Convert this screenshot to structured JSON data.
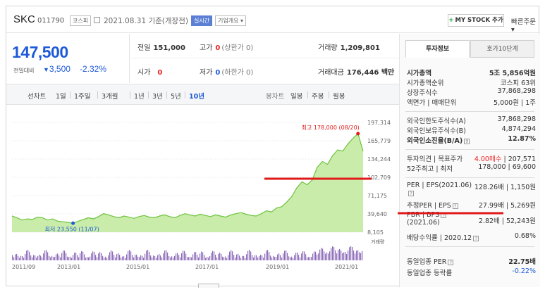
{
  "header": {
    "name": "SKC",
    "code": "011790",
    "market_badge": "코스피",
    "date_text": "2021.08.31 기준(개장전)",
    "realtime_badge": "실시간",
    "company_overview": "기업개요",
    "mystock_label": "MY STOCK 추가",
    "quick_order": "빠른주문"
  },
  "quote": {
    "price": "147,500",
    "change_label": "전일대비",
    "change": "3,500",
    "change_pct": "-2.32%",
    "prev_close_label": "전일",
    "prev_close": "151,000",
    "high_label": "고가",
    "high": "0",
    "high_note": "(상한가 0)",
    "volume_label": "거래량",
    "volume": "1,209,801",
    "open_label": "시가",
    "open": "0",
    "low_label": "저가",
    "low": "0",
    "low_note": "(하한가 0)",
    "amount_label": "거래대금",
    "amount": "176,446 백만"
  },
  "toolbar": {
    "periods": [
      "선차트",
      "1일",
      "1주일",
      "3개월",
      "1년",
      "3년",
      "5년",
      "10년"
    ],
    "active": "10년",
    "candle": [
      "봉차트",
      "일봉",
      "주봉",
      "월봉"
    ]
  },
  "chart_data": {
    "type": "area",
    "x_ticks": [
      "2011/09",
      "2013/01",
      "2015/01",
      "2017/01",
      "2019/01",
      "2021/01"
    ],
    "y_ticks": [
      "197,314",
      "165,779",
      "134,244",
      "102,709",
      "71,175",
      "39,640",
      "8,105"
    ],
    "ylim": [
      8105,
      197314
    ],
    "high_annotation": "최고 178,000 (08/20)",
    "low_annotation": "최저 23,550 (11/07)",
    "volume_label": "거래량",
    "series": [
      {
        "values": [
          36000,
          33000,
          29000,
          31000,
          30000,
          34000,
          33000,
          29000,
          31000,
          27000,
          26000,
          25000,
          23550,
          27000,
          30000,
          33000,
          31000,
          35000,
          40000,
          38000,
          35000,
          33000,
          36000,
          34000,
          32000,
          35000,
          37000,
          34000,
          33000,
          36000,
          38000,
          35000,
          33000,
          37000,
          40000,
          38000,
          36000,
          39000,
          37000,
          35000,
          38000,
          36000,
          34000,
          38000,
          40000,
          42000,
          39000,
          37000,
          36000,
          40000,
          45000,
          43000,
          50000,
          52000,
          60000,
          70000,
          85000,
          95000,
          90000,
          98000,
          120000,
          130000,
          125000,
          140000,
          150000,
          148000,
          160000,
          170000,
          178000,
          147500
        ]
      }
    ]
  },
  "info": {
    "tabs": [
      "투자정보",
      "호가10단계"
    ],
    "rows1": [
      {
        "label": "시가총액",
        "value": "5조 5,856억원"
      },
      {
        "label": "시가총액순위",
        "value": "코스피 63위"
      },
      {
        "label": "상장주식수",
        "value": "37,868,298"
      },
      {
        "label": "액면가 | 매매단위",
        "value": "5,000원 | 1주"
      }
    ],
    "rows2": [
      {
        "label": "외국인한도주식수(A)",
        "value": "37,868,298"
      },
      {
        "label": "외국인보유주식수(B)",
        "value": "4,874,294"
      },
      {
        "label": "외국인소진율(B/A)",
        "value": "12.87%"
      }
    ],
    "opinion_label": "투자의견 | 목표주가",
    "opinion_value": "4.00매수",
    "target_value": "207,571",
    "w52_label": "52주최고 | 최저",
    "w52_value": "178,000 | 69,600",
    "per_label": "PER | EPS(2021.06)",
    "per_value": "128.26배 | 1,150원",
    "est_label": "추정PER | EPS",
    "est_value": "27.99배 | 5,269원",
    "pbr_label": "PBR | BPS",
    "pbr_sub": "(2021.06)",
    "pbr_value": "2.82배 | 52,243원",
    "div_label": "배당수익률 | 2020.12",
    "div_value": "0.68%",
    "sector_per_label": "동일업종 PER",
    "sector_per_value": "22.75배",
    "sector_chg_label": "동일업종 등락률",
    "sector_chg_value": "-0.22%"
  },
  "colors": {
    "accent_blue": "#1e5ad8",
    "up_red": "#e22222",
    "area_green": "#8bd45a",
    "annotation_red": "#e01919"
  }
}
